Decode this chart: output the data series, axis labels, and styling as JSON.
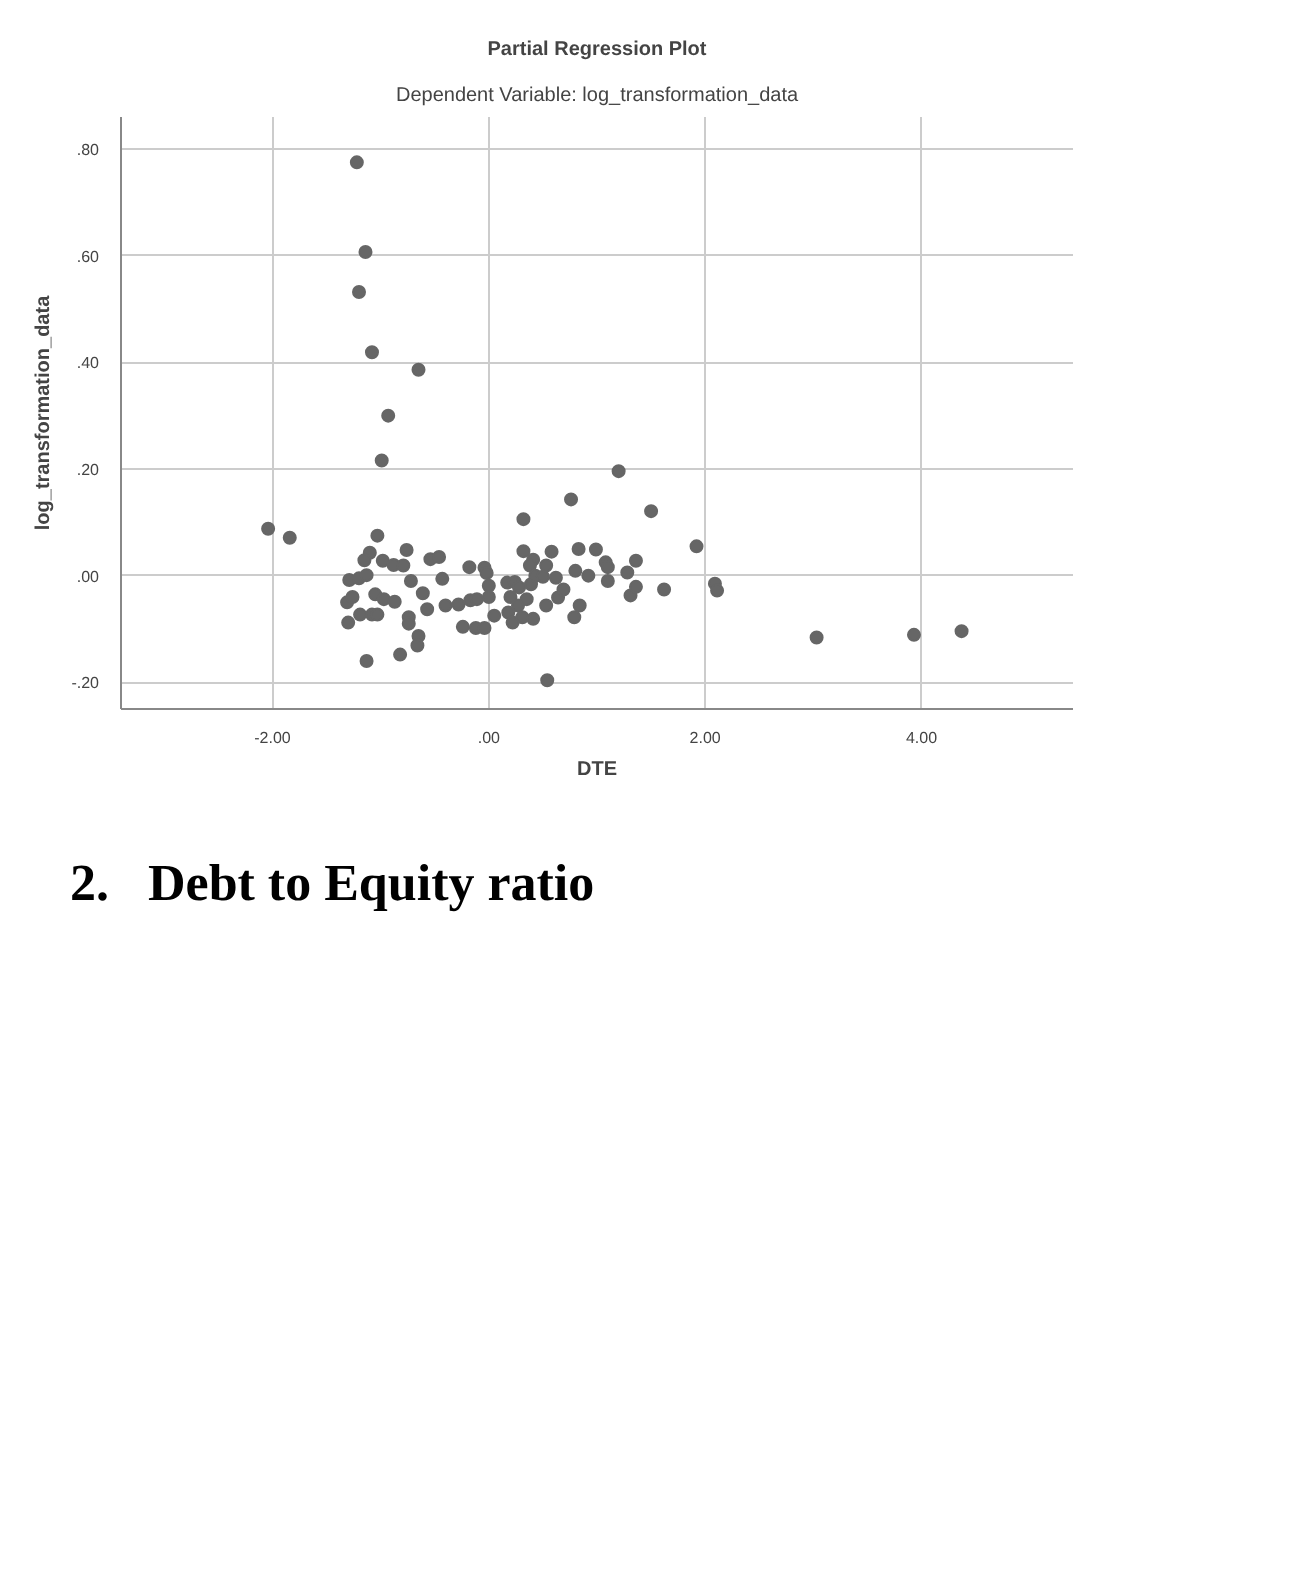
{
  "chart_data": {
    "type": "scatter",
    "title": "Partial Regression Plot",
    "subtitle": "Dependent Variable: log_transformation_data",
    "xlabel": "DTE",
    "ylabel": "log_transformation_data",
    "xlim": [
      -3.4,
      5.4
    ],
    "ylim": [
      -0.25,
      0.86
    ],
    "xticks": [
      {
        "value": -2,
        "label": "-2.00"
      },
      {
        "value": 0,
        "label": ".00"
      },
      {
        "value": 2,
        "label": "2.00"
      },
      {
        "value": 4,
        "label": "4.00"
      }
    ],
    "yticks": [
      {
        "value": -0.2,
        "label": "-.20"
      },
      {
        "value": 0,
        "label": ".00"
      },
      {
        "value": 0.2,
        "label": ".20"
      },
      {
        "value": 0.4,
        "label": ".40"
      },
      {
        "value": 0.6,
        "label": ".60"
      },
      {
        "value": 0.8,
        "label": ".80"
      }
    ],
    "grid": true,
    "marker": "circle",
    "series": [
      {
        "color": "#666666",
        "x": [
          -1.22,
          -1.14,
          -1.2,
          -1.08,
          -0.65,
          -2.04,
          -1.84,
          -0.93,
          -0.99,
          1.2,
          0.76,
          1.5,
          0.32,
          1.92,
          -1.03,
          -1.1,
          -1.15,
          -0.76,
          -0.54,
          -0.46,
          -0.18,
          -0.04,
          0.32,
          0.58,
          0.41,
          0.38,
          0.8,
          0.99,
          0.83,
          1.08,
          1.1,
          1.36,
          1.28,
          1.1,
          0.62,
          0.92,
          -0.98,
          -0.88,
          -0.79,
          -1.29,
          -1.2,
          -1.13,
          -0.72,
          -0.43,
          -0.02,
          0.0,
          0.17,
          0.24,
          0.28,
          0.39,
          0.43,
          0.5,
          0.53,
          -1.31,
          -1.26,
          -1.05,
          -0.97,
          -0.87,
          -0.61,
          -0.57,
          -0.4,
          -0.28,
          -0.17,
          -0.11,
          0.0,
          0.05,
          0.2,
          0.27,
          0.35,
          0.64,
          0.69,
          0.79,
          0.84,
          1.31,
          1.36,
          1.62,
          -1.3,
          -1.19,
          -1.08,
          -1.03,
          -0.74,
          -0.74,
          -0.24,
          -0.12,
          -0.04,
          0.18,
          0.22,
          0.31,
          0.41,
          0.53,
          -0.65,
          -0.66,
          -0.82,
          -1.13,
          0.54,
          2.09,
          2.11,
          3.03,
          3.93,
          4.37
        ],
        "values": [
          0.775,
          0.607,
          0.532,
          0.419,
          0.386,
          0.088,
          0.071,
          0.3,
          0.216,
          0.196,
          0.143,
          0.121,
          0.106,
          0.055,
          0.075,
          0.043,
          0.029,
          0.048,
          0.031,
          0.035,
          0.016,
          0.015,
          0.046,
          0.045,
          0.03,
          0.019,
          0.009,
          0.049,
          0.05,
          0.025,
          0.016,
          0.028,
          0.006,
          -0.01,
          -0.004,
          0.0,
          0.028,
          0.02,
          0.019,
          -0.008,
          -0.005,
          0.001,
          -0.01,
          -0.006,
          0.005,
          -0.019,
          -0.013,
          -0.012,
          -0.022,
          -0.016,
          0.0,
          -0.002,
          0.019,
          -0.05,
          -0.04,
          -0.035,
          -0.044,
          -0.049,
          -0.033,
          -0.063,
          -0.056,
          -0.054,
          -0.046,
          -0.044,
          -0.04,
          -0.075,
          -0.04,
          -0.056,
          -0.044,
          -0.041,
          -0.026,
          -0.078,
          -0.056,
          -0.037,
          -0.021,
          -0.026,
          -0.088,
          -0.073,
          -0.073,
          -0.073,
          -0.078,
          -0.09,
          -0.096,
          -0.098,
          -0.098,
          -0.069,
          -0.088,
          -0.078,
          -0.081,
          -0.056,
          -0.113,
          -0.131,
          -0.148,
          -0.16,
          -0.196,
          -0.015,
          -0.028,
          -0.116,
          -0.111,
          -0.104
        ]
      }
    ],
    "annotations": [
      "2.   Debt to Equity ratio"
    ]
  }
}
